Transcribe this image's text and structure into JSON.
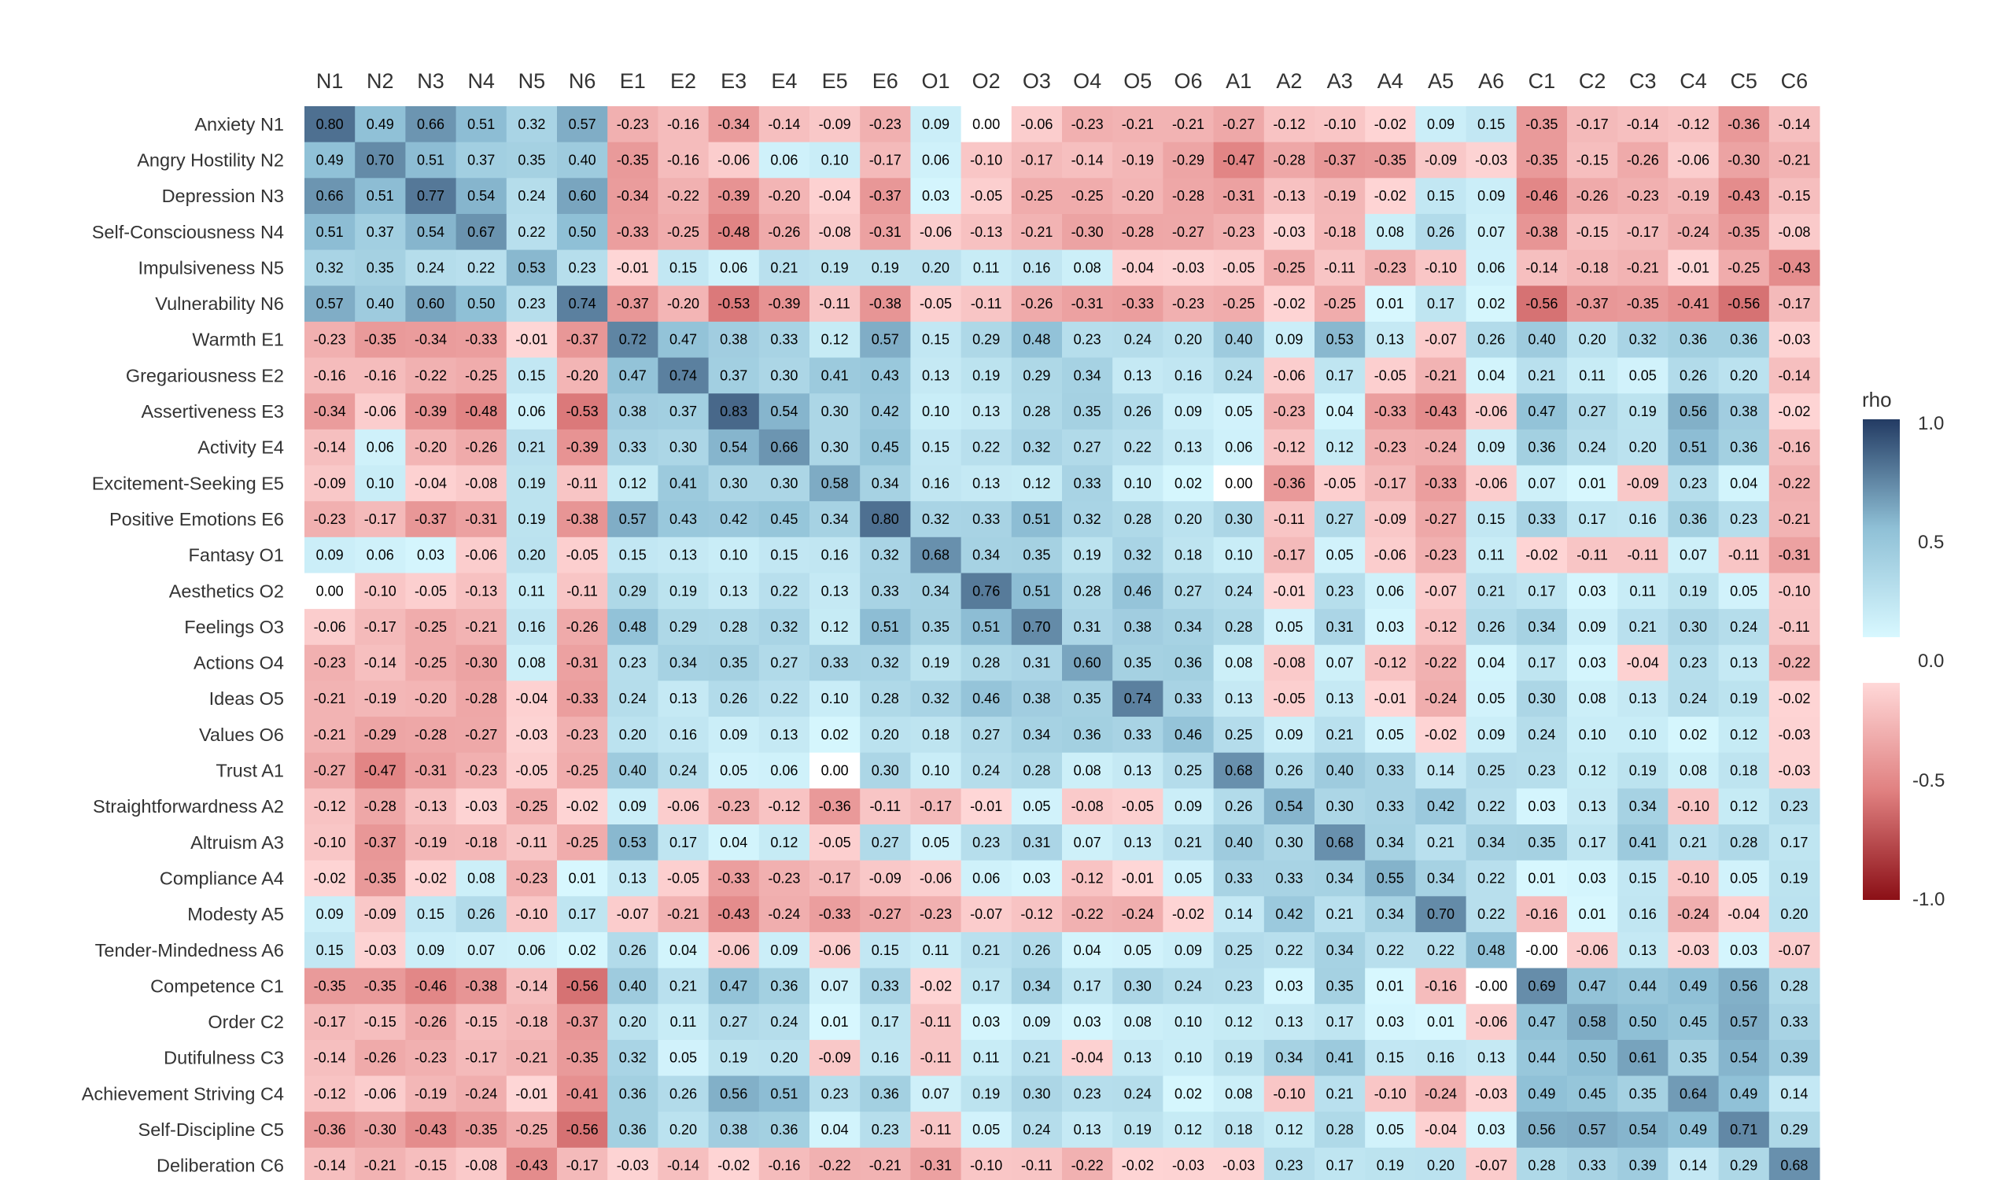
{
  "chart_data": {
    "type": "heatmap",
    "columns": [
      "N1",
      "N2",
      "N3",
      "N4",
      "N5",
      "N6",
      "E1",
      "E2",
      "E3",
      "E4",
      "E5",
      "E6",
      "O1",
      "O2",
      "O3",
      "O4",
      "O5",
      "O6",
      "A1",
      "A2",
      "A3",
      "A4",
      "A5",
      "A6",
      "C1",
      "C2",
      "C3",
      "C4",
      "C5",
      "C6"
    ],
    "rows": [
      "Anxiety N1",
      "Angry Hostility N2",
      "Depression N3",
      "Self-Consciousness N4",
      "Impulsiveness N5",
      "Vulnerability N6",
      "Warmth E1",
      "Gregariousness E2",
      "Assertiveness E3",
      "Activity E4",
      "Excitement-Seeking E5",
      "Positive Emotions E6",
      "Fantasy O1",
      "Aesthetics O2",
      "Feelings O3",
      "Actions O4",
      "Ideas O5",
      "Values O6",
      "Trust A1",
      "Straightforwardness A2",
      "Altruism A3",
      "Compliance A4",
      "Modesty A5",
      "Tender-Mindedness A6",
      "Competence C1",
      "Order C2",
      "Dutifulness C3",
      "Achievement Striving C4",
      "Self-Discipline C5",
      "Deliberation C6"
    ],
    "cells": [
      [
        "0.80",
        "0.49",
        "0.66",
        "0.51",
        "0.32",
        "0.57",
        "-0.23",
        "-0.16",
        "-0.34",
        "-0.14",
        "-0.09",
        "-0.23",
        "0.09",
        "0.00",
        "-0.06",
        "-0.23",
        "-0.21",
        "-0.21",
        "-0.27",
        "-0.12",
        "-0.10",
        "-0.02",
        "0.09",
        "0.15",
        "-0.35",
        "-0.17",
        "-0.14",
        "-0.12",
        "-0.36",
        "-0.14"
      ],
      [
        "0.49",
        "0.70",
        "0.51",
        "0.37",
        "0.35",
        "0.40",
        "-0.35",
        "-0.16",
        "-0.06",
        "0.06",
        "0.10",
        "-0.17",
        "0.06",
        "-0.10",
        "-0.17",
        "-0.14",
        "-0.19",
        "-0.29",
        "-0.47",
        "-0.28",
        "-0.37",
        "-0.35",
        "-0.09",
        "-0.03",
        "-0.35",
        "-0.15",
        "-0.26",
        "-0.06",
        "-0.30",
        "-0.21"
      ],
      [
        "0.66",
        "0.51",
        "0.77",
        "0.54",
        "0.24",
        "0.60",
        "-0.34",
        "-0.22",
        "-0.39",
        "-0.20",
        "-0.04",
        "-0.37",
        "0.03",
        "-0.05",
        "-0.25",
        "-0.25",
        "-0.20",
        "-0.28",
        "-0.31",
        "-0.13",
        "-0.19",
        "-0.02",
        "0.15",
        "0.09",
        "-0.46",
        "-0.26",
        "-0.23",
        "-0.19",
        "-0.43",
        "-0.15"
      ],
      [
        "0.51",
        "0.37",
        "0.54",
        "0.67",
        "0.22",
        "0.50",
        "-0.33",
        "-0.25",
        "-0.48",
        "-0.26",
        "-0.08",
        "-0.31",
        "-0.06",
        "-0.13",
        "-0.21",
        "-0.30",
        "-0.28",
        "-0.27",
        "-0.23",
        "-0.03",
        "-0.18",
        "0.08",
        "0.26",
        "0.07",
        "-0.38",
        "-0.15",
        "-0.17",
        "-0.24",
        "-0.35",
        "-0.08"
      ],
      [
        "0.32",
        "0.35",
        "0.24",
        "0.22",
        "0.53",
        "0.23",
        "-0.01",
        "0.15",
        "0.06",
        "0.21",
        "0.19",
        "0.19",
        "0.20",
        "0.11",
        "0.16",
        "0.08",
        "-0.04",
        "-0.03",
        "-0.05",
        "-0.25",
        "-0.11",
        "-0.23",
        "-0.10",
        "0.06",
        "-0.14",
        "-0.18",
        "-0.21",
        "-0.01",
        "-0.25",
        "-0.43"
      ],
      [
        "0.57",
        "0.40",
        "0.60",
        "0.50",
        "0.23",
        "0.74",
        "-0.37",
        "-0.20",
        "-0.53",
        "-0.39",
        "-0.11",
        "-0.38",
        "-0.05",
        "-0.11",
        "-0.26",
        "-0.31",
        "-0.33",
        "-0.23",
        "-0.25",
        "-0.02",
        "-0.25",
        "0.01",
        "0.17",
        "0.02",
        "-0.56",
        "-0.37",
        "-0.35",
        "-0.41",
        "-0.56",
        "-0.17"
      ],
      [
        "-0.23",
        "-0.35",
        "-0.34",
        "-0.33",
        "-0.01",
        "-0.37",
        "0.72",
        "0.47",
        "0.38",
        "0.33",
        "0.12",
        "0.57",
        "0.15",
        "0.29",
        "0.48",
        "0.23",
        "0.24",
        "0.20",
        "0.40",
        "0.09",
        "0.53",
        "0.13",
        "-0.07",
        "0.26",
        "0.40",
        "0.20",
        "0.32",
        "0.36",
        "0.36",
        "-0.03"
      ],
      [
        "-0.16",
        "-0.16",
        "-0.22",
        "-0.25",
        "0.15",
        "-0.20",
        "0.47",
        "0.74",
        "0.37",
        "0.30",
        "0.41",
        "0.43",
        "0.13",
        "0.19",
        "0.29",
        "0.34",
        "0.13",
        "0.16",
        "0.24",
        "-0.06",
        "0.17",
        "-0.05",
        "-0.21",
        "0.04",
        "0.21",
        "0.11",
        "0.05",
        "0.26",
        "0.20",
        "-0.14"
      ],
      [
        "-0.34",
        "-0.06",
        "-0.39",
        "-0.48",
        "0.06",
        "-0.53",
        "0.38",
        "0.37",
        "0.83",
        "0.54",
        "0.30",
        "0.42",
        "0.10",
        "0.13",
        "0.28",
        "0.35",
        "0.26",
        "0.09",
        "0.05",
        "-0.23",
        "0.04",
        "-0.33",
        "-0.43",
        "-0.06",
        "0.47",
        "0.27",
        "0.19",
        "0.56",
        "0.38",
        "-0.02"
      ],
      [
        "-0.14",
        "0.06",
        "-0.20",
        "-0.26",
        "0.21",
        "-0.39",
        "0.33",
        "0.30",
        "0.54",
        "0.66",
        "0.30",
        "0.45",
        "0.15",
        "0.22",
        "0.32",
        "0.27",
        "0.22",
        "0.13",
        "0.06",
        "-0.12",
        "0.12",
        "-0.23",
        "-0.24",
        "0.09",
        "0.36",
        "0.24",
        "0.20",
        "0.51",
        "0.36",
        "-0.16"
      ],
      [
        "-0.09",
        "0.10",
        "-0.04",
        "-0.08",
        "0.19",
        "-0.11",
        "0.12",
        "0.41",
        "0.30",
        "0.30",
        "0.58",
        "0.34",
        "0.16",
        "0.13",
        "0.12",
        "0.33",
        "0.10",
        "0.02",
        "0.00",
        "-0.36",
        "-0.05",
        "-0.17",
        "-0.33",
        "-0.06",
        "0.07",
        "0.01",
        "-0.09",
        "0.23",
        "0.04",
        "-0.22"
      ],
      [
        "-0.23",
        "-0.17",
        "-0.37",
        "-0.31",
        "0.19",
        "-0.38",
        "0.57",
        "0.43",
        "0.42",
        "0.45",
        "0.34",
        "0.80",
        "0.32",
        "0.33",
        "0.51",
        "0.32",
        "0.28",
        "0.20",
        "0.30",
        "-0.11",
        "0.27",
        "-0.09",
        "-0.27",
        "0.15",
        "0.33",
        "0.17",
        "0.16",
        "0.36",
        "0.23",
        "-0.21"
      ],
      [
        "0.09",
        "0.06",
        "0.03",
        "-0.06",
        "0.20",
        "-0.05",
        "0.15",
        "0.13",
        "0.10",
        "0.15",
        "0.16",
        "0.32",
        "0.68",
        "0.34",
        "0.35",
        "0.19",
        "0.32",
        "0.18",
        "0.10",
        "-0.17",
        "0.05",
        "-0.06",
        "-0.23",
        "0.11",
        "-0.02",
        "-0.11",
        "-0.11",
        "0.07",
        "-0.11",
        "-0.31"
      ],
      [
        "0.00",
        "-0.10",
        "-0.05",
        "-0.13",
        "0.11",
        "-0.11",
        "0.29",
        "0.19",
        "0.13",
        "0.22",
        "0.13",
        "0.33",
        "0.34",
        "0.76",
        "0.51",
        "0.28",
        "0.46",
        "0.27",
        "0.24",
        "-0.01",
        "0.23",
        "0.06",
        "-0.07",
        "0.21",
        "0.17",
        "0.03",
        "0.11",
        "0.19",
        "0.05",
        "-0.10"
      ],
      [
        "-0.06",
        "-0.17",
        "-0.25",
        "-0.21",
        "0.16",
        "-0.26",
        "0.48",
        "0.29",
        "0.28",
        "0.32",
        "0.12",
        "0.51",
        "0.35",
        "0.51",
        "0.70",
        "0.31",
        "0.38",
        "0.34",
        "0.28",
        "0.05",
        "0.31",
        "0.03",
        "-0.12",
        "0.26",
        "0.34",
        "0.09",
        "0.21",
        "0.30",
        "0.24",
        "-0.11"
      ],
      [
        "-0.23",
        "-0.14",
        "-0.25",
        "-0.30",
        "0.08",
        "-0.31",
        "0.23",
        "0.34",
        "0.35",
        "0.27",
        "0.33",
        "0.32",
        "0.19",
        "0.28",
        "0.31",
        "0.60",
        "0.35",
        "0.36",
        "0.08",
        "-0.08",
        "0.07",
        "-0.12",
        "-0.22",
        "0.04",
        "0.17",
        "0.03",
        "-0.04",
        "0.23",
        "0.13",
        "-0.22"
      ],
      [
        "-0.21",
        "-0.19",
        "-0.20",
        "-0.28",
        "-0.04",
        "-0.33",
        "0.24",
        "0.13",
        "0.26",
        "0.22",
        "0.10",
        "0.28",
        "0.32",
        "0.46",
        "0.38",
        "0.35",
        "0.74",
        "0.33",
        "0.13",
        "-0.05",
        "0.13",
        "-0.01",
        "-0.24",
        "0.05",
        "0.30",
        "0.08",
        "0.13",
        "0.24",
        "0.19",
        "-0.02"
      ],
      [
        "-0.21",
        "-0.29",
        "-0.28",
        "-0.27",
        "-0.03",
        "-0.23",
        "0.20",
        "0.16",
        "0.09",
        "0.13",
        "0.02",
        "0.20",
        "0.18",
        "0.27",
        "0.34",
        "0.36",
        "0.33",
        "0.46",
        "0.25",
        "0.09",
        "0.21",
        "0.05",
        "-0.02",
        "0.09",
        "0.24",
        "0.10",
        "0.10",
        "0.02",
        "0.12",
        "-0.03"
      ],
      [
        "-0.27",
        "-0.47",
        "-0.31",
        "-0.23",
        "-0.05",
        "-0.25",
        "0.40",
        "0.24",
        "0.05",
        "0.06",
        "0.00",
        "0.30",
        "0.10",
        "0.24",
        "0.28",
        "0.08",
        "0.13",
        "0.25",
        "0.68",
        "0.26",
        "0.40",
        "0.33",
        "0.14",
        "0.25",
        "0.23",
        "0.12",
        "0.19",
        "0.08",
        "0.18",
        "-0.03"
      ],
      [
        "-0.12",
        "-0.28",
        "-0.13",
        "-0.03",
        "-0.25",
        "-0.02",
        "0.09",
        "-0.06",
        "-0.23",
        "-0.12",
        "-0.36",
        "-0.11",
        "-0.17",
        "-0.01",
        "0.05",
        "-0.08",
        "-0.05",
        "0.09",
        "0.26",
        "0.54",
        "0.30",
        "0.33",
        "0.42",
        "0.22",
        "0.03",
        "0.13",
        "0.34",
        "-0.10",
        "0.12",
        "0.23"
      ],
      [
        "-0.10",
        "-0.37",
        "-0.19",
        "-0.18",
        "-0.11",
        "-0.25",
        "0.53",
        "0.17",
        "0.04",
        "0.12",
        "-0.05",
        "0.27",
        "0.05",
        "0.23",
        "0.31",
        "0.07",
        "0.13",
        "0.21",
        "0.40",
        "0.30",
        "0.68",
        "0.34",
        "0.21",
        "0.34",
        "0.35",
        "0.17",
        "0.41",
        "0.21",
        "0.28",
        "0.17"
      ],
      [
        "-0.02",
        "-0.35",
        "-0.02",
        "0.08",
        "-0.23",
        "0.01",
        "0.13",
        "-0.05",
        "-0.33",
        "-0.23",
        "-0.17",
        "-0.09",
        "-0.06",
        "0.06",
        "0.03",
        "-0.12",
        "-0.01",
        "0.05",
        "0.33",
        "0.33",
        "0.34",
        "0.55",
        "0.34",
        "0.22",
        "0.01",
        "0.03",
        "0.15",
        "-0.10",
        "0.05",
        "0.19"
      ],
      [
        "0.09",
        "-0.09",
        "0.15",
        "0.26",
        "-0.10",
        "0.17",
        "-0.07",
        "-0.21",
        "-0.43",
        "-0.24",
        "-0.33",
        "-0.27",
        "-0.23",
        "-0.07",
        "-0.12",
        "-0.22",
        "-0.24",
        "-0.02",
        "0.14",
        "0.42",
        "0.21",
        "0.34",
        "0.70",
        "0.22",
        "-0.16",
        "0.01",
        "0.16",
        "-0.24",
        "-0.04",
        "0.20"
      ],
      [
        "0.15",
        "-0.03",
        "0.09",
        "0.07",
        "0.06",
        "0.02",
        "0.26",
        "0.04",
        "-0.06",
        "0.09",
        "-0.06",
        "0.15",
        "0.11",
        "0.21",
        "0.26",
        "0.04",
        "0.05",
        "0.09",
        "0.25",
        "0.22",
        "0.34",
        "0.22",
        "0.22",
        "0.48",
        "-0.00",
        "-0.06",
        "0.13",
        "-0.03",
        "0.03",
        "-0.07"
      ],
      [
        "-0.35",
        "-0.35",
        "-0.46",
        "-0.38",
        "-0.14",
        "-0.56",
        "0.40",
        "0.21",
        "0.47",
        "0.36",
        "0.07",
        "0.33",
        "-0.02",
        "0.17",
        "0.34",
        "0.17",
        "0.30",
        "0.24",
        "0.23",
        "0.03",
        "0.35",
        "0.01",
        "-0.16",
        "-0.00",
        "0.69",
        "0.47",
        "0.44",
        "0.49",
        "0.56",
        "0.28"
      ],
      [
        "-0.17",
        "-0.15",
        "-0.26",
        "-0.15",
        "-0.18",
        "-0.37",
        "0.20",
        "0.11",
        "0.27",
        "0.24",
        "0.01",
        "0.17",
        "-0.11",
        "0.03",
        "0.09",
        "0.03",
        "0.08",
        "0.10",
        "0.12",
        "0.13",
        "0.17",
        "0.03",
        "0.01",
        "-0.06",
        "0.47",
        "0.58",
        "0.50",
        "0.45",
        "0.57",
        "0.33"
      ],
      [
        "-0.14",
        "-0.26",
        "-0.23",
        "-0.17",
        "-0.21",
        "-0.35",
        "0.32",
        "0.05",
        "0.19",
        "0.20",
        "-0.09",
        "0.16",
        "-0.11",
        "0.11",
        "0.21",
        "-0.04",
        "0.13",
        "0.10",
        "0.19",
        "0.34",
        "0.41",
        "0.15",
        "0.16",
        "0.13",
        "0.44",
        "0.50",
        "0.61",
        "0.35",
        "0.54",
        "0.39"
      ],
      [
        "-0.12",
        "-0.06",
        "-0.19",
        "-0.24",
        "-0.01",
        "-0.41",
        "0.36",
        "0.26",
        "0.56",
        "0.51",
        "0.23",
        "0.36",
        "0.07",
        "0.19",
        "0.30",
        "0.23",
        "0.24",
        "0.02",
        "0.08",
        "-0.10",
        "0.21",
        "-0.10",
        "-0.24",
        "-0.03",
        "0.49",
        "0.45",
        "0.35",
        "0.64",
        "0.49",
        "0.14"
      ],
      [
        "-0.36",
        "-0.30",
        "-0.43",
        "-0.35",
        "-0.25",
        "-0.56",
        "0.36",
        "0.20",
        "0.38",
        "0.36",
        "0.04",
        "0.23",
        "-0.11",
        "0.05",
        "0.24",
        "0.13",
        "0.19",
        "0.12",
        "0.18",
        "0.12",
        "0.28",
        "0.05",
        "-0.04",
        "0.03",
        "0.56",
        "0.57",
        "0.54",
        "0.49",
        "0.71",
        "0.29"
      ],
      [
        "-0.14",
        "-0.21",
        "-0.15",
        "-0.08",
        "-0.43",
        "-0.17",
        "-0.03",
        "-0.14",
        "-0.02",
        "-0.16",
        "-0.22",
        "-0.21",
        "-0.31",
        "-0.10",
        "-0.11",
        "-0.22",
        "-0.02",
        "-0.03",
        "-0.03",
        "0.23",
        "0.17",
        "0.19",
        "0.20",
        "-0.07",
        "0.28",
        "0.33",
        "0.39",
        "0.14",
        "0.29",
        "0.68"
      ]
    ],
    "legend": {
      "title": "rho",
      "ticks": [
        "1.0",
        "0.5",
        "0.0",
        "-0.5",
        "-1.0"
      ],
      "range": [
        -1,
        1
      ],
      "positive_colors": [
        "#d8f8ff",
        "#8fc0d6",
        "#233b63"
      ],
      "negative_colors": [
        "#ffd8d8",
        "#e08080",
        "#8b0f16"
      ],
      "placement": "right"
    }
  }
}
